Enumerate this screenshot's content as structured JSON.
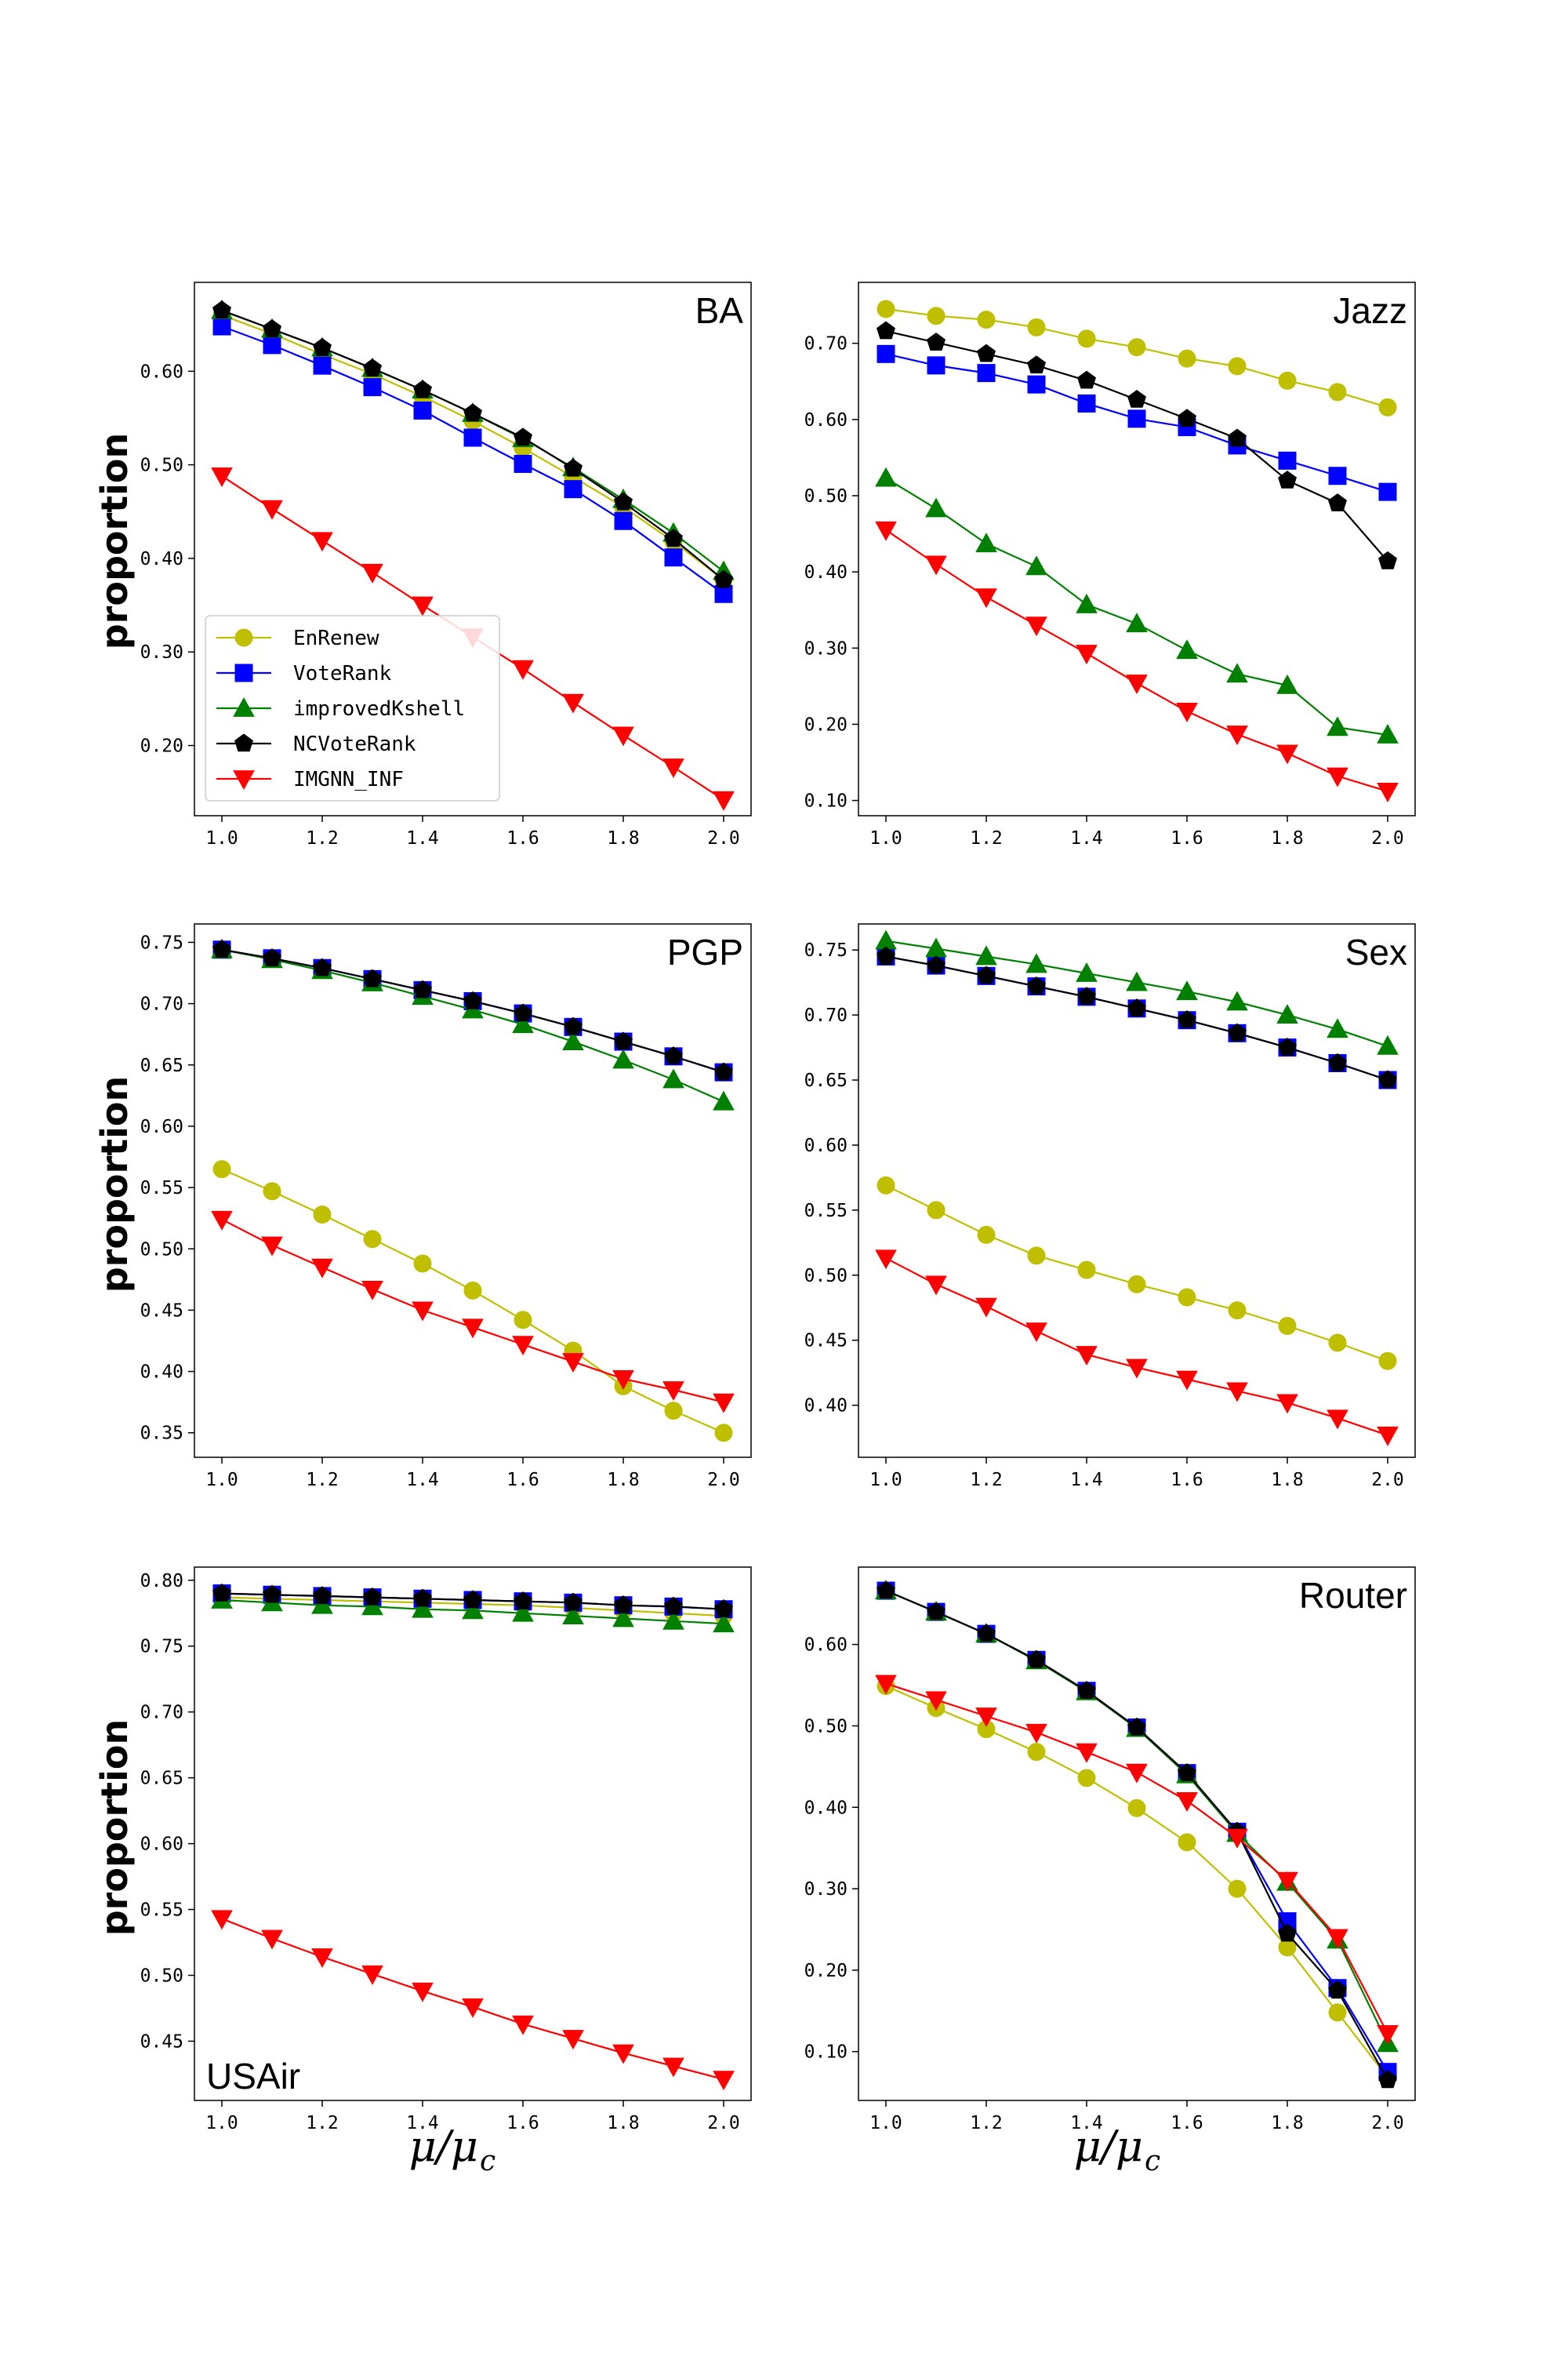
{
  "figure": {
    "ylabel": "proportion",
    "xlabel_main": "μ/μ",
    "xlabel_sub": "c"
  },
  "legend": [
    {
      "name": "EnRenew",
      "color": "#bfbf00",
      "marker": "circle"
    },
    {
      "name": "VoteRank",
      "color": "#0000ff",
      "marker": "square"
    },
    {
      "name": "improvedKshell",
      "color": "#008000",
      "marker": "triangle-up"
    },
    {
      "name": "NCVoteRank",
      "color": "#000000",
      "marker": "pentagon"
    },
    {
      "name": "IMGNN_INF",
      "color": "#ff0000",
      "marker": "triangle-down"
    }
  ],
  "chart_data": [
    {
      "type": "line",
      "title": "BA",
      "title_loc": "top-right",
      "x": [
        1.0,
        1.1,
        1.2,
        1.3,
        1.4,
        1.5,
        1.6,
        1.7,
        1.8,
        1.9,
        2.0
      ],
      "xticks": [
        "1.0",
        "1.2",
        "1.4",
        "1.6",
        "1.8",
        "2.0"
      ],
      "yticks": [
        "0.20",
        "0.30",
        "0.40",
        "0.50",
        "0.60"
      ],
      "ylim": [
        0.125,
        0.695
      ],
      "series": [
        {
          "name": "EnRenew",
          "values": [
            0.66,
            0.64,
            0.618,
            0.597,
            0.573,
            0.547,
            0.518,
            0.487,
            0.455,
            0.418,
            0.377
          ]
        },
        {
          "name": "VoteRank",
          "values": [
            0.648,
            0.628,
            0.606,
            0.583,
            0.558,
            0.529,
            0.501,
            0.474,
            0.44,
            0.401,
            0.362
          ]
        },
        {
          "name": "improvedKshell",
          "values": [
            0.665,
            0.645,
            0.625,
            0.603,
            0.58,
            0.555,
            0.528,
            0.497,
            0.463,
            0.427,
            0.386
          ]
        },
        {
          "name": "NCVoteRank",
          "values": [
            0.665,
            0.645,
            0.625,
            0.603,
            0.58,
            0.555,
            0.529,
            0.496,
            0.46,
            0.421,
            0.377
          ]
        },
        {
          "name": "IMGNN_INF",
          "values": [
            0.488,
            0.453,
            0.419,
            0.385,
            0.35,
            0.316,
            0.282,
            0.246,
            0.211,
            0.177,
            0.142
          ]
        }
      ],
      "show_legend": true
    },
    {
      "type": "line",
      "title": "Jazz",
      "title_loc": "top-right",
      "x": [
        1.0,
        1.1,
        1.2,
        1.3,
        1.4,
        1.5,
        1.6,
        1.7,
        1.8,
        1.9,
        2.0
      ],
      "xticks": [
        "1.0",
        "1.2",
        "1.4",
        "1.6",
        "1.8",
        "2.0"
      ],
      "yticks": [
        "0.10",
        "0.20",
        "0.30",
        "0.40",
        "0.50",
        "0.60",
        "0.70"
      ],
      "ylim": [
        0.08,
        0.78
      ],
      "series": [
        {
          "name": "EnRenew",
          "values": [
            0.745,
            0.736,
            0.731,
            0.721,
            0.706,
            0.695,
            0.68,
            0.67,
            0.651,
            0.636,
            0.616
          ]
        },
        {
          "name": "VoteRank",
          "values": [
            0.686,
            0.671,
            0.661,
            0.646,
            0.621,
            0.601,
            0.59,
            0.566,
            0.546,
            0.526,
            0.505
          ]
        },
        {
          "name": "improvedKshell",
          "values": [
            0.523,
            0.483,
            0.437,
            0.407,
            0.357,
            0.332,
            0.297,
            0.266,
            0.251,
            0.196,
            0.186
          ]
        },
        {
          "name": "NCVoteRank",
          "values": [
            0.716,
            0.701,
            0.686,
            0.671,
            0.651,
            0.626,
            0.601,
            0.575,
            0.52,
            0.49,
            0.414
          ]
        },
        {
          "name": "IMGNN_INF",
          "values": [
            0.455,
            0.41,
            0.367,
            0.33,
            0.293,
            0.254,
            0.217,
            0.187,
            0.162,
            0.132,
            0.112
          ]
        }
      ],
      "show_legend": false
    },
    {
      "type": "line",
      "title": "PGP",
      "title_loc": "top-right",
      "x": [
        1.0,
        1.1,
        1.2,
        1.3,
        1.4,
        1.5,
        1.6,
        1.7,
        1.8,
        1.9,
        2.0
      ],
      "xticks": [
        "1.0",
        "1.2",
        "1.4",
        "1.6",
        "1.8",
        "2.0"
      ],
      "yticks": [
        "0.35",
        "0.40",
        "0.45",
        "0.50",
        "0.55",
        "0.60",
        "0.65",
        "0.70",
        "0.75"
      ],
      "ylim": [
        0.33,
        0.765
      ],
      "series": [
        {
          "name": "EnRenew",
          "values": [
            0.565,
            0.547,
            0.528,
            0.508,
            0.488,
            0.466,
            0.442,
            0.417,
            0.388,
            0.368,
            0.35
          ]
        },
        {
          "name": "VoteRank",
          "values": [
            0.744,
            0.737,
            0.729,
            0.72,
            0.711,
            0.702,
            0.692,
            0.681,
            0.669,
            0.657,
            0.644
          ]
        },
        {
          "name": "improvedKshell",
          "values": [
            0.744,
            0.736,
            0.727,
            0.717,
            0.706,
            0.695,
            0.683,
            0.669,
            0.654,
            0.638,
            0.62
          ]
        },
        {
          "name": "NCVoteRank",
          "values": [
            0.744,
            0.737,
            0.729,
            0.72,
            0.711,
            0.702,
            0.692,
            0.681,
            0.669,
            0.657,
            0.644
          ]
        },
        {
          "name": "IMGNN_INF",
          "values": [
            0.524,
            0.503,
            0.485,
            0.467,
            0.45,
            0.436,
            0.422,
            0.408,
            0.394,
            0.385,
            0.375
          ]
        }
      ],
      "show_legend": false
    },
    {
      "type": "line",
      "title": "Sex",
      "title_loc": "top-right",
      "x": [
        1.0,
        1.1,
        1.2,
        1.3,
        1.4,
        1.5,
        1.6,
        1.7,
        1.8,
        1.9,
        2.0
      ],
      "xticks": [
        "1.0",
        "1.2",
        "1.4",
        "1.6",
        "1.8",
        "2.0"
      ],
      "yticks": [
        "0.40",
        "0.45",
        "0.50",
        "0.55",
        "0.60",
        "0.65",
        "0.70",
        "0.75"
      ],
      "ylim": [
        0.36,
        0.77
      ],
      "series": [
        {
          "name": "EnRenew",
          "values": [
            0.569,
            0.55,
            0.531,
            0.515,
            0.504,
            0.493,
            0.483,
            0.473,
            0.461,
            0.448,
            0.434
          ]
        },
        {
          "name": "VoteRank",
          "values": [
            0.745,
            0.738,
            0.73,
            0.722,
            0.714,
            0.705,
            0.696,
            0.686,
            0.675,
            0.663,
            0.65
          ]
        },
        {
          "name": "improvedKshell",
          "values": [
            0.757,
            0.751,
            0.745,
            0.739,
            0.732,
            0.725,
            0.718,
            0.71,
            0.7,
            0.689,
            0.676
          ]
        },
        {
          "name": "NCVoteRank",
          "values": [
            0.745,
            0.738,
            0.73,
            0.722,
            0.714,
            0.705,
            0.696,
            0.686,
            0.675,
            0.663,
            0.65
          ]
        },
        {
          "name": "IMGNN_INF",
          "values": [
            0.513,
            0.493,
            0.476,
            0.457,
            0.439,
            0.429,
            0.42,
            0.411,
            0.402,
            0.39,
            0.377
          ]
        }
      ],
      "show_legend": false
    },
    {
      "type": "line",
      "title": "USAir",
      "title_loc": "bottom-left",
      "x": [
        1.0,
        1.1,
        1.2,
        1.3,
        1.4,
        1.5,
        1.6,
        1.7,
        1.8,
        1.9,
        2.0
      ],
      "xticks": [
        "1.0",
        "1.2",
        "1.4",
        "1.6",
        "1.8",
        "2.0"
      ],
      "yticks": [
        "0.45",
        "0.50",
        "0.55",
        "0.60",
        "0.65",
        "0.70",
        "0.75",
        "0.80"
      ],
      "ylim": [
        0.405,
        0.81
      ],
      "series": [
        {
          "name": "EnRenew",
          "values": [
            0.787,
            0.786,
            0.785,
            0.784,
            0.783,
            0.782,
            0.781,
            0.779,
            0.777,
            0.775,
            0.773
          ]
        },
        {
          "name": "VoteRank",
          "values": [
            0.79,
            0.789,
            0.788,
            0.787,
            0.786,
            0.785,
            0.784,
            0.783,
            0.781,
            0.78,
            0.778
          ]
        },
        {
          "name": "improvedKshell",
          "values": [
            0.785,
            0.783,
            0.781,
            0.78,
            0.778,
            0.777,
            0.775,
            0.773,
            0.771,
            0.769,
            0.767
          ]
        },
        {
          "name": "NCVoteRank",
          "values": [
            0.79,
            0.789,
            0.788,
            0.787,
            0.786,
            0.785,
            0.784,
            0.783,
            0.781,
            0.78,
            0.778
          ]
        },
        {
          "name": "IMGNN_INF",
          "values": [
            0.543,
            0.528,
            0.514,
            0.501,
            0.488,
            0.476,
            0.463,
            0.452,
            0.441,
            0.431,
            0.421
          ]
        }
      ],
      "show_legend": false
    },
    {
      "type": "line",
      "title": "Router",
      "title_loc": "top-right",
      "x": [
        1.0,
        1.1,
        1.2,
        1.3,
        1.4,
        1.5,
        1.6,
        1.7,
        1.8,
        1.9,
        2.0
      ],
      "xticks": [
        "1.0",
        "1.2",
        "1.4",
        "1.6",
        "1.8",
        "2.0"
      ],
      "yticks": [
        "0.10",
        "0.20",
        "0.30",
        "0.40",
        "0.50",
        "0.60"
      ],
      "ylim": [
        0.04,
        0.695
      ],
      "series": [
        {
          "name": "EnRenew",
          "values": [
            0.549,
            0.522,
            0.496,
            0.468,
            0.436,
            0.399,
            0.357,
            0.3,
            0.228,
            0.148,
            0.068
          ]
        },
        {
          "name": "VoteRank",
          "values": [
            0.666,
            0.64,
            0.613,
            0.581,
            0.543,
            0.498,
            0.442,
            0.37,
            0.26,
            0.178,
            0.075
          ]
        },
        {
          "name": "improvedKshell",
          "values": [
            0.666,
            0.64,
            0.613,
            0.58,
            0.542,
            0.497,
            0.44,
            0.368,
            0.308,
            0.237,
            0.11
          ]
        },
        {
          "name": "NCVoteRank",
          "values": [
            0.666,
            0.64,
            0.613,
            0.581,
            0.543,
            0.498,
            0.442,
            0.37,
            0.245,
            0.175,
            0.065
          ]
        },
        {
          "name": "IMGNN_INF",
          "values": [
            0.552,
            0.532,
            0.512,
            0.492,
            0.468,
            0.443,
            0.408,
            0.363,
            0.31,
            0.24,
            0.122
          ]
        }
      ],
      "show_legend": false
    }
  ]
}
